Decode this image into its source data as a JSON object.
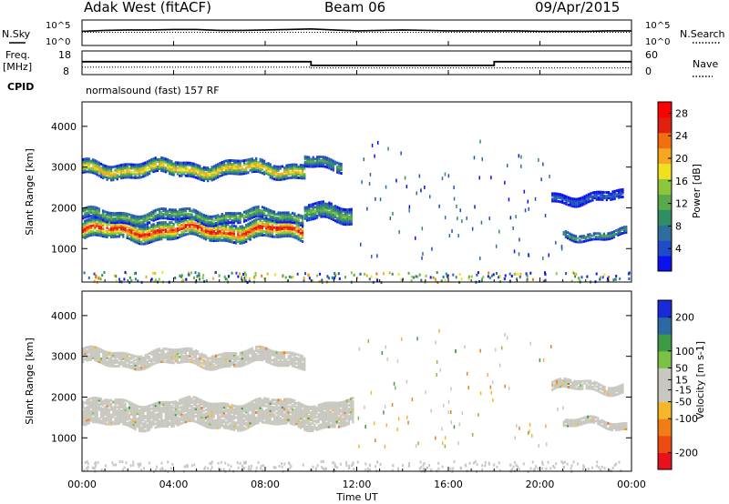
{
  "header": {
    "station": "Adak West (fitACF)",
    "beam": "Beam 06",
    "date": "09/Apr/2015"
  },
  "colors": {
    "power_scale": [
      "#0a10f0",
      "#1f4ac9",
      "#2f6e9a",
      "#2f8e64",
      "#5aa84a",
      "#8cc63f",
      "#f0e020",
      "#f5a623",
      "#f07010",
      "#e02010",
      "#ff0000"
    ],
    "velocity_scale": [
      "#e8101a",
      "#f04a14",
      "#f07d16",
      "#f7b52a",
      "#c8c8c0",
      "#c8c8c0",
      "#7cc046",
      "#3f9a48",
      "#2a6aa0",
      "#1a2ad8"
    ]
  },
  "chart_data": [
    {
      "type": "line",
      "id": "nsky-nsearch",
      "labels": {
        "left": "N.Sky",
        "right": "N.Search"
      },
      "y_ticks_left": [
        "10^5",
        "10^0"
      ],
      "y_ticks_right": [
        "10^5",
        "10^0"
      ],
      "series": [
        {
          "name": "N.Sky",
          "style": "solid",
          "x": [
            0,
            1,
            2,
            3,
            4,
            5,
            6,
            7,
            8,
            9,
            10,
            11,
            12,
            13,
            14,
            15,
            16,
            17,
            18,
            19,
            20,
            21,
            22,
            23,
            24
          ],
          "y": [
            2.8,
            3.0,
            3.1,
            3.1,
            3.2,
            3.2,
            3.0,
            3.0,
            3.1,
            3.2,
            3.3,
            3.1,
            2.9,
            3.0,
            3.1,
            3.0,
            2.9,
            2.9,
            2.9,
            2.9,
            2.8,
            2.8,
            2.8,
            2.9,
            2.9
          ]
        },
        {
          "name": "N.Search",
          "style": "dotted",
          "x": [
            0,
            6,
            12,
            18,
            24
          ],
          "y": [
            2.6,
            2.6,
            2.6,
            2.6,
            2.6
          ]
        }
      ]
    },
    {
      "type": "line",
      "id": "freq-nave",
      "labels": {
        "left": "Freq.",
        "left_unit": "[MHz]",
        "right": "Nave",
        "cpid": "CPID"
      },
      "y_ticks_left": [
        18,
        8
      ],
      "y_ticks_right": [
        60,
        0
      ],
      "series": [
        {
          "name": "Freq.",
          "style": "solid",
          "x": [
            0,
            10.0,
            10.0,
            18.0,
            18.0,
            24
          ],
          "y": [
            13.2,
            13.2,
            10.8,
            10.8,
            13.2,
            13.2
          ]
        },
        {
          "name": "Nave",
          "style": "dotted",
          "x": [
            0,
            10.0,
            10.0,
            24
          ],
          "y": [
            19,
            19,
            17,
            17
          ]
        }
      ],
      "cpid_text": "normalsound (fast) 157 RF"
    },
    {
      "type": "heatmap",
      "id": "power",
      "ylabel": "Slant Range [km]",
      "y_ticks": [
        1000,
        2000,
        3000,
        4000
      ],
      "ylim": [
        180,
        4600
      ],
      "xlim": [
        0,
        24
      ],
      "colorbar": {
        "label": "Power [dB]",
        "ticks": [
          4,
          8,
          12,
          16,
          20,
          24,
          28
        ],
        "range": [
          0,
          30
        ]
      },
      "bands": [
        {
          "x0": 0.0,
          "x1": 9.6,
          "center": 1450,
          "width": 420,
          "peak": 28
        },
        {
          "x0": 0.0,
          "x1": 9.6,
          "center": 1800,
          "width": 260,
          "peak": 14
        },
        {
          "x0": 0.0,
          "x1": 9.7,
          "center": 2950,
          "width": 320,
          "peak": 22
        },
        {
          "x0": 9.7,
          "x1": 11.8,
          "center": 1850,
          "width": 360,
          "peak": 14
        },
        {
          "x0": 9.7,
          "x1": 11.3,
          "center": 3100,
          "width": 260,
          "peak": 12
        },
        {
          "x0": 21.0,
          "x1": 23.8,
          "center": 1350,
          "width": 160,
          "peak": 12
        },
        {
          "x0": 20.5,
          "x1": 23.6,
          "center": 2250,
          "width": 180,
          "peak": 6
        }
      ]
    },
    {
      "type": "heatmap",
      "id": "velocity",
      "ylabel": "Slant Range [km]",
      "y_ticks": [
        1000,
        2000,
        3000,
        4000
      ],
      "ylim": [
        180,
        4600
      ],
      "xlim": [
        0,
        24
      ],
      "colorbar": {
        "label": "Velocity [m s-1]",
        "ticks": [
          -200,
          -100,
          -50,
          -15,
          15,
          50,
          100,
          200
        ],
        "range": [
          -250,
          250
        ]
      },
      "bands": [
        {
          "x0": 0.0,
          "x1": 11.8,
          "center": 1600,
          "width": 620,
          "mean": 0
        },
        {
          "x0": 0.0,
          "x1": 9.7,
          "center": 2950,
          "width": 320,
          "mean": -20
        },
        {
          "x0": 21.0,
          "x1": 23.8,
          "center": 1350,
          "width": 160,
          "mean": 0
        },
        {
          "x0": 20.5,
          "x1": 23.6,
          "center": 2250,
          "width": 180,
          "mean": 0
        }
      ]
    }
  ],
  "x_axis": {
    "label": "Time UT",
    "ticks": [
      {
        "value": 0,
        "label": "00:00"
      },
      {
        "value": 4,
        "label": "04:00"
      },
      {
        "value": 8,
        "label": "08:00"
      },
      {
        "value": 12,
        "label": "12:00"
      },
      {
        "value": 16,
        "label": "16:00"
      },
      {
        "value": 20,
        "label": "20:00"
      },
      {
        "value": 24,
        "label": "00:00"
      }
    ]
  }
}
